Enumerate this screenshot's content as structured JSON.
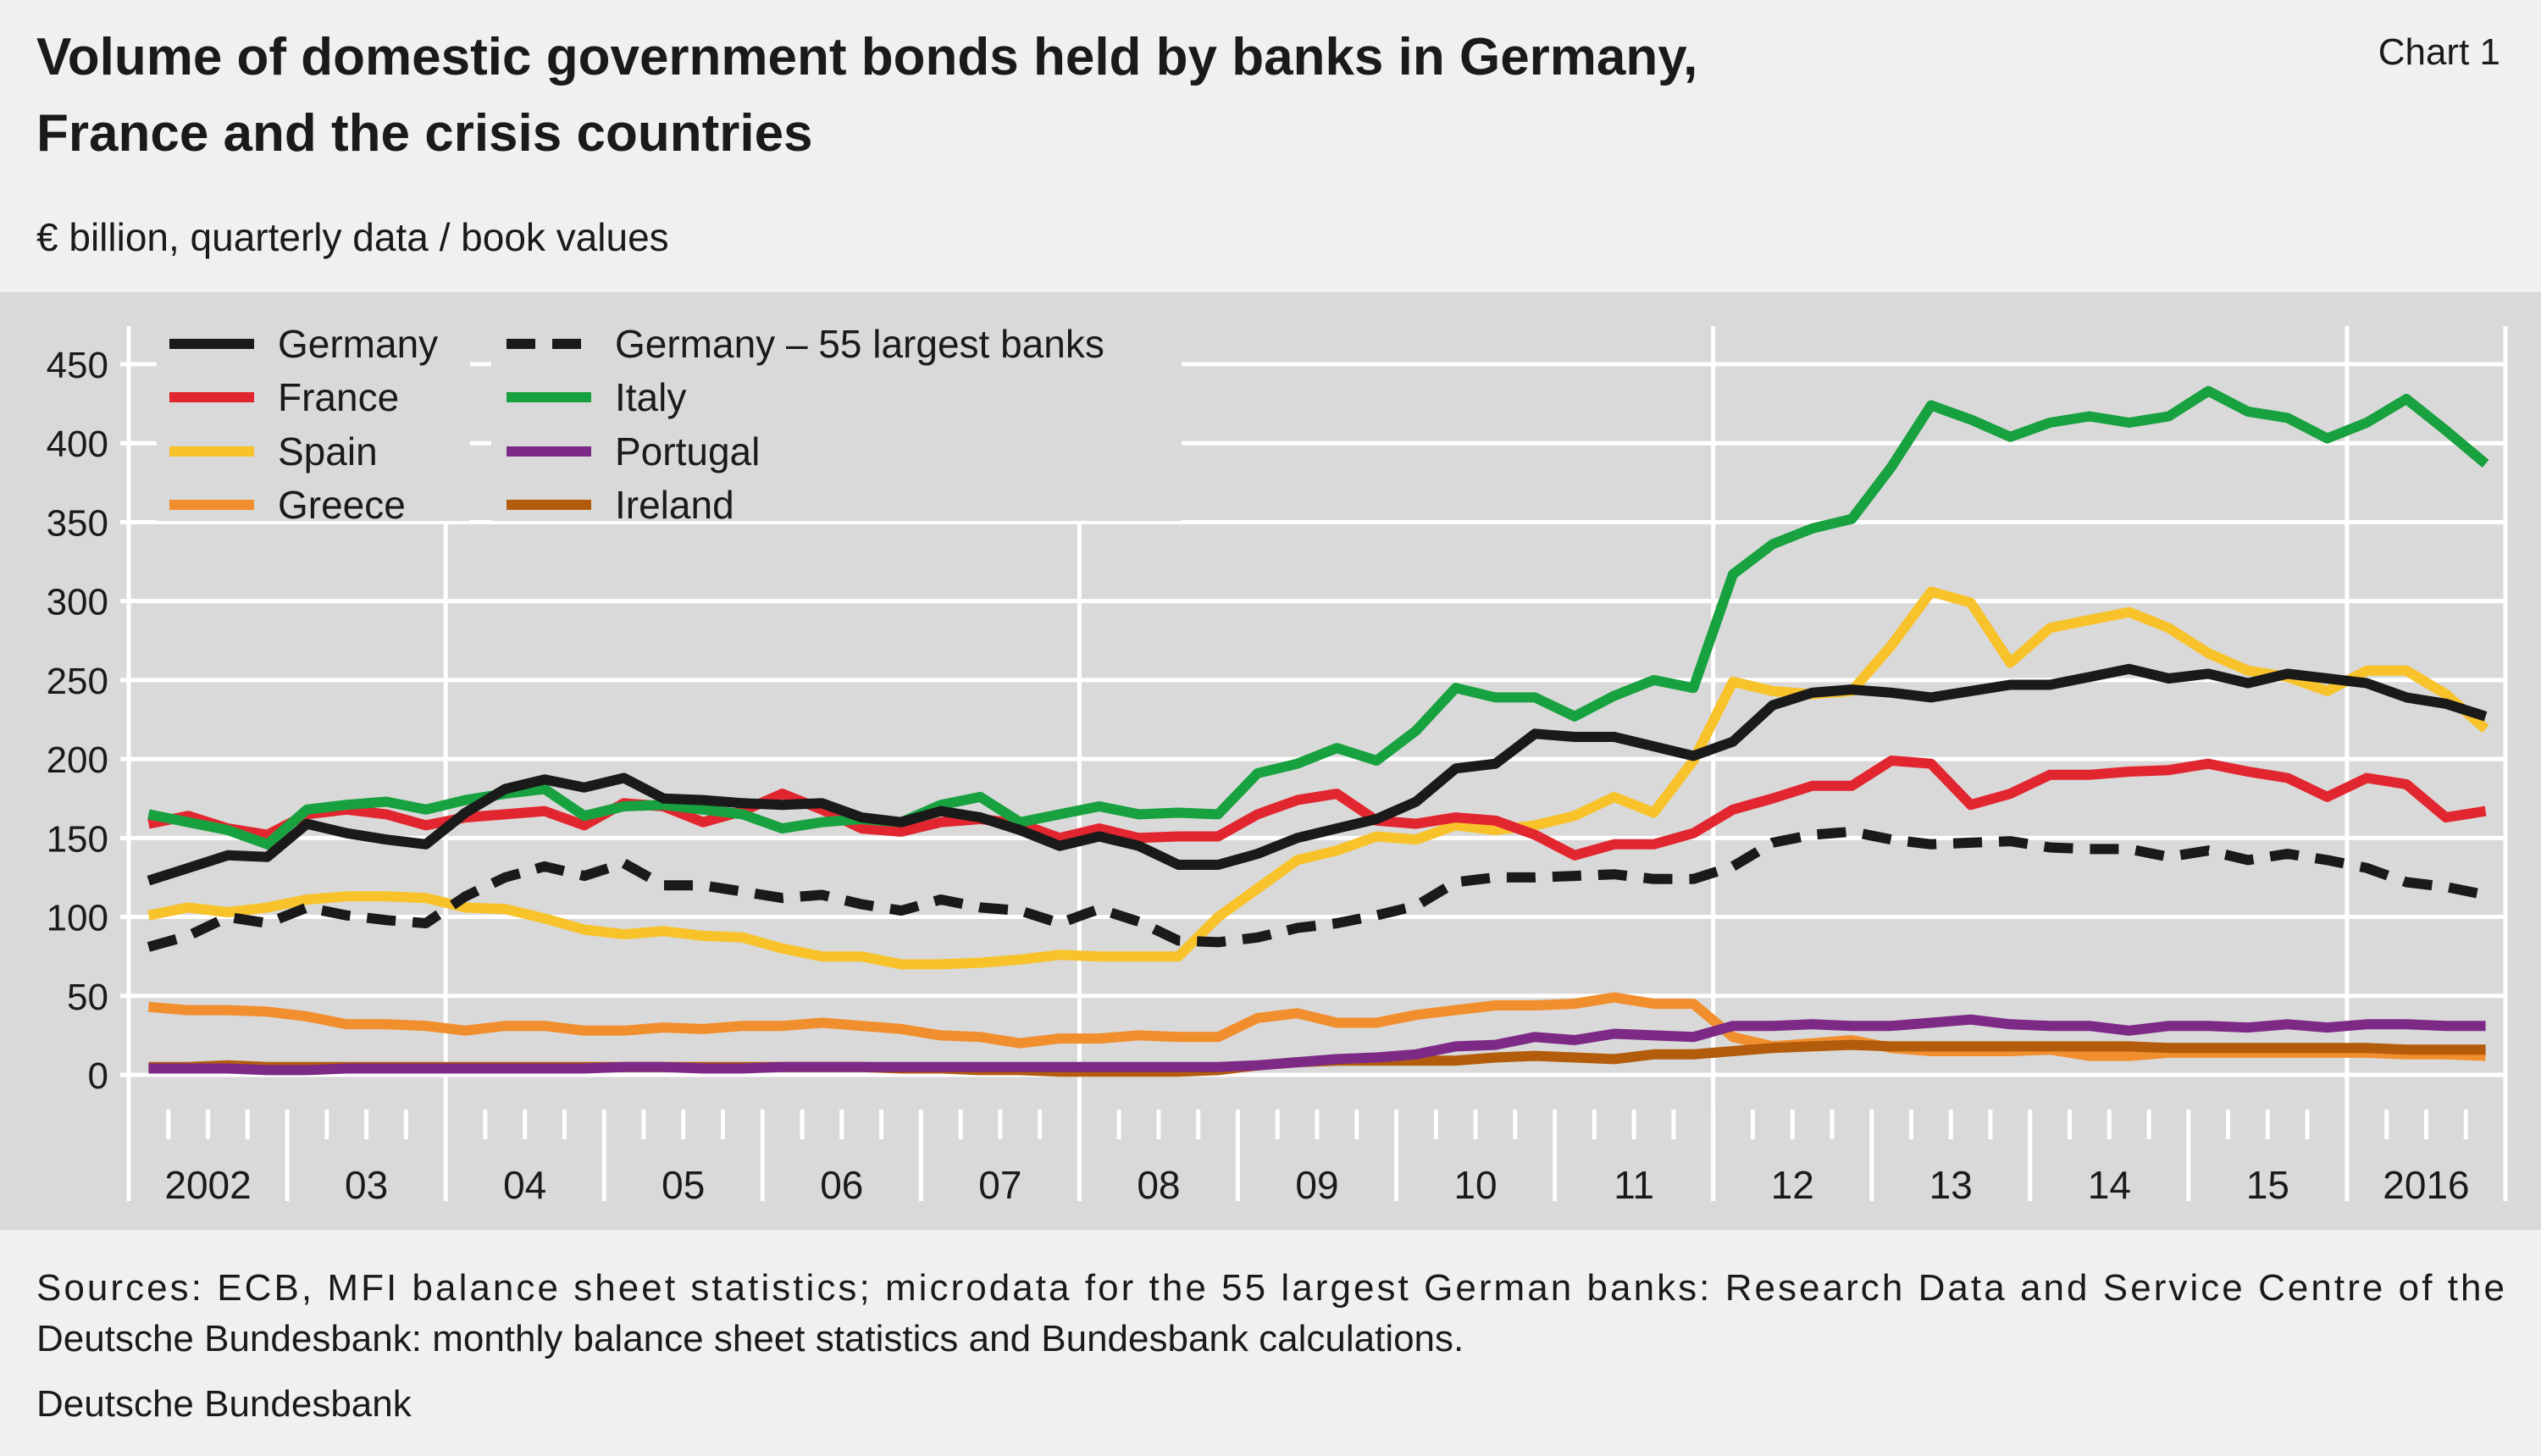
{
  "header": {
    "title_line1": "Volume of domestic government bonds held by banks in Germany,",
    "title_line2": "France and the crisis countries",
    "chart_number": "Chart 1",
    "subtitle": "€ billion, quarterly data / book values"
  },
  "footer": {
    "sources_line1": "Sources: ECB, MFI balance sheet statistics; microdata for the 55 largest German banks: Research Data and Service Centre of the",
    "sources_line2": "Deutsche Bundesbank: monthly balance sheet statistics and Bundesbank calculations.",
    "publisher": "Deutsche Bundesbank"
  },
  "chart_data": {
    "type": "line",
    "title": "Volume of domestic government bonds held by banks in Germany, France and the crisis countries",
    "ylabel": "€ billion, quarterly data / book values",
    "xlabel": "",
    "ylim": [
      0,
      450
    ],
    "yticks": [
      0,
      50,
      100,
      150,
      200,
      250,
      300,
      350,
      400,
      450
    ],
    "x_start": "2002-Q1",
    "x_end": "2016-Q4",
    "year_labels": [
      "2002",
      "03",
      "04",
      "05",
      "06",
      "07",
      "08",
      "09",
      "10",
      "11",
      "12",
      "13",
      "14",
      "15",
      "2016"
    ],
    "grid": "horizontal",
    "legend_position": "top-left",
    "series": [
      {
        "name": "Germany",
        "color": "#1a1a1a",
        "dash": false,
        "values": [
          123,
          131,
          139,
          138,
          159,
          153,
          149,
          146,
          166,
          181,
          187,
          182,
          188,
          175,
          174,
          172,
          171,
          172,
          163,
          160,
          167,
          163,
          155,
          145,
          151,
          145,
          133,
          133,
          140,
          150,
          156,
          162,
          173,
          194,
          197,
          216,
          214,
          214,
          208,
          202,
          211,
          234,
          242,
          244,
          242,
          239,
          243,
          247,
          247,
          252,
          257,
          251,
          254,
          248,
          254,
          251,
          248,
          239,
          235,
          227
        ]
      },
      {
        "name": "Germany – 55 largest banks",
        "color": "#1a1a1a",
        "dash": true,
        "values": [
          81,
          88,
          100,
          96,
          106,
          101,
          98,
          96,
          113,
          125,
          132,
          126,
          134,
          120,
          120,
          116,
          112,
          114,
          108,
          104,
          111,
          106,
          104,
          96,
          105,
          97,
          85,
          84,
          87,
          93,
          96,
          101,
          107,
          122,
          125,
          125,
          126,
          127,
          124,
          124,
          132,
          147,
          152,
          154,
          149,
          146,
          147,
          148,
          144,
          143,
          143,
          138,
          142,
          136,
          140,
          136,
          131,
          122,
          119,
          114
        ]
      },
      {
        "name": "France",
        "color": "#e2262f",
        "dash": false,
        "values": [
          159,
          164,
          156,
          152,
          165,
          168,
          165,
          158,
          163,
          165,
          167,
          158,
          172,
          170,
          160,
          167,
          178,
          168,
          156,
          154,
          160,
          162,
          159,
          150,
          156,
          150,
          151,
          151,
          165,
          174,
          178,
          161,
          159,
          163,
          161,
          152,
          139,
          146,
          146,
          153,
          168,
          175,
          183,
          183,
          199,
          197,
          171,
          178,
          190,
          190,
          192,
          193,
          197,
          192,
          188,
          176,
          188,
          184,
          163,
          167
        ]
      },
      {
        "name": "Italy",
        "color": "#18a13f",
        "dash": false,
        "values": [
          165,
          160,
          155,
          146,
          168,
          171,
          173,
          168,
          174,
          178,
          181,
          164,
          170,
          171,
          168,
          165,
          156,
          160,
          162,
          160,
          171,
          176,
          160,
          165,
          170,
          165,
          166,
          165,
          191,
          197,
          207,
          199,
          218,
          245,
          239,
          239,
          227,
          240,
          250,
          245,
          317,
          336,
          346,
          352,
          385,
          424,
          415,
          404,
          413,
          417,
          413,
          417,
          433,
          420,
          416,
          403,
          413,
          428,
          408,
          387
        ]
      },
      {
        "name": "Spain",
        "color": "#f8c22a",
        "dash": false,
        "values": [
          101,
          106,
          103,
          106,
          111,
          113,
          113,
          112,
          106,
          105,
          99,
          92,
          89,
          91,
          88,
          87,
          80,
          75,
          75,
          70,
          70,
          71,
          73,
          76,
          75,
          75,
          75,
          100,
          118,
          136,
          142,
          151,
          149,
          158,
          155,
          158,
          164,
          176,
          166,
          199,
          249,
          243,
          241,
          243,
          272,
          306,
          299,
          261,
          283,
          288,
          293,
          283,
          267,
          256,
          252,
          243,
          256,
          256,
          241,
          219
        ]
      },
      {
        "name": "Portugal",
        "color": "#7d2a87",
        "dash": false,
        "values": [
          4,
          4,
          4,
          3,
          3,
          4,
          4,
          4,
          4,
          4,
          4,
          4,
          5,
          5,
          4,
          4,
          5,
          5,
          5,
          5,
          5,
          5,
          5,
          5,
          5,
          5,
          5,
          5,
          6,
          8,
          10,
          11,
          13,
          18,
          19,
          24,
          22,
          26,
          25,
          24,
          31,
          31,
          32,
          31,
          31,
          33,
          35,
          32,
          31,
          31,
          28,
          31,
          31,
          30,
          32,
          30,
          32,
          32,
          31,
          31
        ]
      },
      {
        "name": "Greece",
        "color": "#f18e2e",
        "dash": false,
        "values": [
          43,
          41,
          41,
          40,
          37,
          32,
          32,
          31,
          28,
          31,
          31,
          28,
          28,
          30,
          29,
          31,
          31,
          33,
          31,
          29,
          25,
          24,
          20,
          23,
          23,
          25,
          24,
          24,
          36,
          39,
          33,
          33,
          38,
          41,
          44,
          44,
          45,
          49,
          45,
          45,
          24,
          18,
          20,
          22,
          17,
          15,
          15,
          15,
          16,
          12,
          12,
          14,
          14,
          14,
          14,
          14,
          14,
          13,
          13,
          12
        ]
      },
      {
        "name": "Ireland",
        "color": "#b35c0c",
        "dash": false,
        "values": [
          5,
          5,
          6,
          5,
          5,
          5,
          5,
          5,
          5,
          5,
          5,
          5,
          5,
          5,
          5,
          5,
          5,
          5,
          5,
          4,
          4,
          3,
          3,
          2,
          2,
          2,
          2,
          3,
          6,
          8,
          9,
          9,
          9,
          9,
          11,
          12,
          11,
          10,
          13,
          13,
          15,
          17,
          18,
          19,
          18,
          18,
          18,
          18,
          18,
          18,
          18,
          17,
          17,
          17,
          17,
          17,
          17,
          16,
          16,
          16
        ]
      }
    ]
  }
}
